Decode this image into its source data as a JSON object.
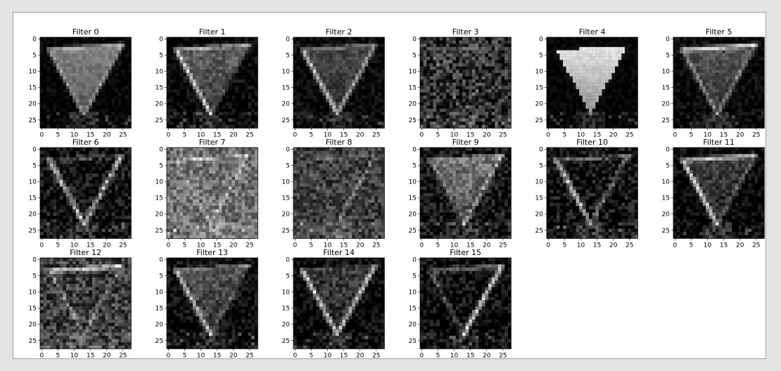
{
  "figure": {
    "background": "#ffffff",
    "frame_border": "#9c9c9c",
    "page_background": "#e4e4e4"
  },
  "chart_data": {
    "type": "heatmap",
    "layout": "grid-4x6",
    "colormap": "gray",
    "image_size": [
      28,
      28
    ],
    "x_ticks": [
      0,
      5,
      10,
      15,
      20,
      25
    ],
    "y_ticks": [
      0,
      5,
      10,
      15,
      20,
      25
    ],
    "xlim": [
      0,
      27
    ],
    "ylim": [
      27,
      0
    ],
    "subplots": [
      {
        "title": "Filter 0"
      },
      {
        "title": "Filter 1"
      },
      {
        "title": "Filter 2"
      },
      {
        "title": "Filter 3"
      },
      {
        "title": "Filter 4"
      },
      {
        "title": "Filter 5"
      },
      {
        "title": "Filter 6"
      },
      {
        "title": "Filter 7"
      },
      {
        "title": "Filter 8"
      },
      {
        "title": "Filter 9"
      },
      {
        "title": "Filter 10"
      },
      {
        "title": "Filter 11"
      },
      {
        "title": "Filter 12"
      },
      {
        "title": "Filter 13"
      },
      {
        "title": "Filter 14"
      },
      {
        "title": "Filter 15"
      }
    ]
  }
}
